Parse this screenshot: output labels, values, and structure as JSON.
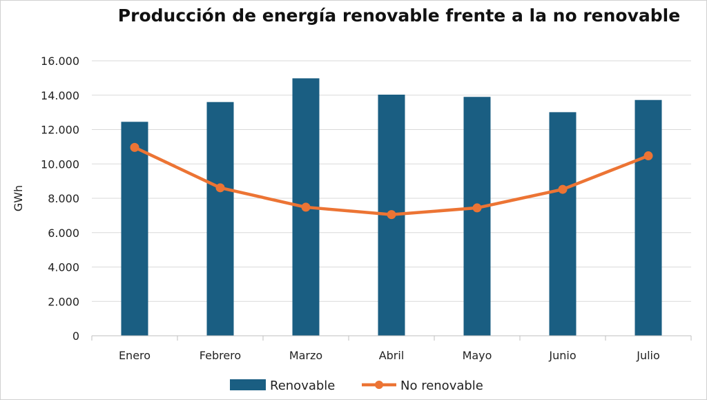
{
  "chart_data": {
    "type": "bar",
    "title": "Producción de energía renovable frente a la no renovable",
    "ylabel": "GWh",
    "xlabel": "",
    "categories": [
      "Enero",
      "Febrero",
      "Marzo",
      "Abril",
      "Mayo",
      "Junio",
      "Julio"
    ],
    "ylim": [
      0,
      16000
    ],
    "yticks": [
      0,
      2000,
      4000,
      6000,
      8000,
      10000,
      12000,
      14000,
      16000
    ],
    "ytick_labels": [
      "0",
      "2.000",
      "4.000",
      "6.000",
      "8.000",
      "10.000",
      "12.000",
      "14.000",
      "16.000"
    ],
    "grid": true,
    "legend_position": "bottom",
    "series": [
      {
        "name": "Renovable",
        "type": "bar",
        "color": "#1a5e82",
        "values": [
          12450,
          13600,
          14980,
          14030,
          13900,
          13010,
          13720
        ]
      },
      {
        "name": "No renovable",
        "type": "line",
        "color": "#ec7434",
        "values": [
          10960,
          8610,
          7480,
          7050,
          7440,
          8520,
          10470
        ]
      }
    ]
  }
}
